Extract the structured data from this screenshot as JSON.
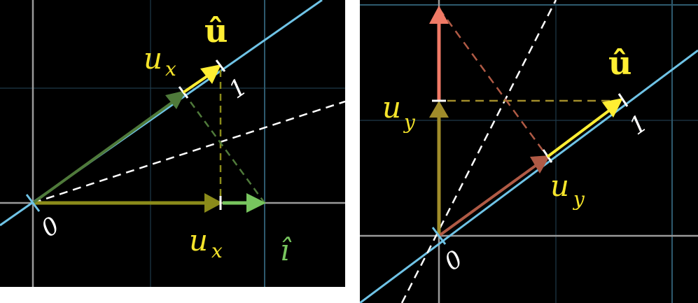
{
  "colors": {
    "background": "#000000",
    "grid": "#1f3a4a",
    "grid_major": "#2e5a6e",
    "axis": "#9a9a9a",
    "unit_line": "#6fc3e6",
    "u_hat": "#ffee33",
    "label_yellow": "#f5e42a",
    "i_hat": "#77c55e",
    "u_x_vec": "#8b8b1a",
    "u_x_proj": "#4f7a3a",
    "u_y_vec": "#a08c2a",
    "j_hat": "#f07a66",
    "u_y_proj": "#b05a45",
    "dashed_white": "#ffffff"
  },
  "left": {
    "u_hat_label": "û",
    "ux_label_top": "u",
    "ux_label_top_sub": "x",
    "ux_label_bottom": "u",
    "ux_label_bottom_sub": "x",
    "i_hat_label": "î",
    "tick_one": "1",
    "tick_zero": "0"
  },
  "right": {
    "u_hat_label": "û",
    "uy_label_left": "u",
    "uy_label_left_sub": "y",
    "uy_label_right": "u",
    "uy_label_right_sub": "y",
    "tick_one": "1",
    "tick_zero": "0"
  }
}
